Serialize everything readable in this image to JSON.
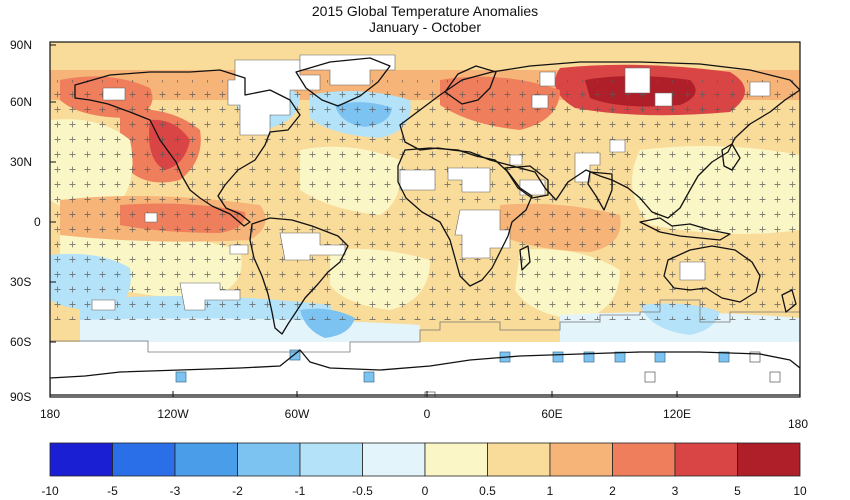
{
  "title": "2015 Global Temperature Anomalies",
  "subtitle": "January - October",
  "lat_labels": [
    "90N",
    "60N",
    "30N",
    "0",
    "30S",
    "60S",
    "90S"
  ],
  "lon_labels": [
    "180",
    "120W",
    "60W",
    "0",
    "60E",
    "120E",
    "180"
  ],
  "colorbar": {
    "labels": [
      "-10",
      "-5",
      "-3",
      "-2",
      "-1",
      "-0.5",
      "0",
      "0.5",
      "1",
      "2",
      "3",
      "5",
      "10"
    ],
    "colors": [
      "#1b1fd4",
      "#2a6fe8",
      "#4a9ee9",
      "#7dc3f2",
      "#b4e2f8",
      "#e4f4fb",
      "#fbf6c5",
      "#f9db9a",
      "#f6b478",
      "#ef7e5d",
      "#d94545",
      "#ae1f2a"
    ]
  },
  "colors": {
    "land_outline": "#111111",
    "missing": "#ffffff",
    "significance_marker": "#5a5a5a"
  }
}
